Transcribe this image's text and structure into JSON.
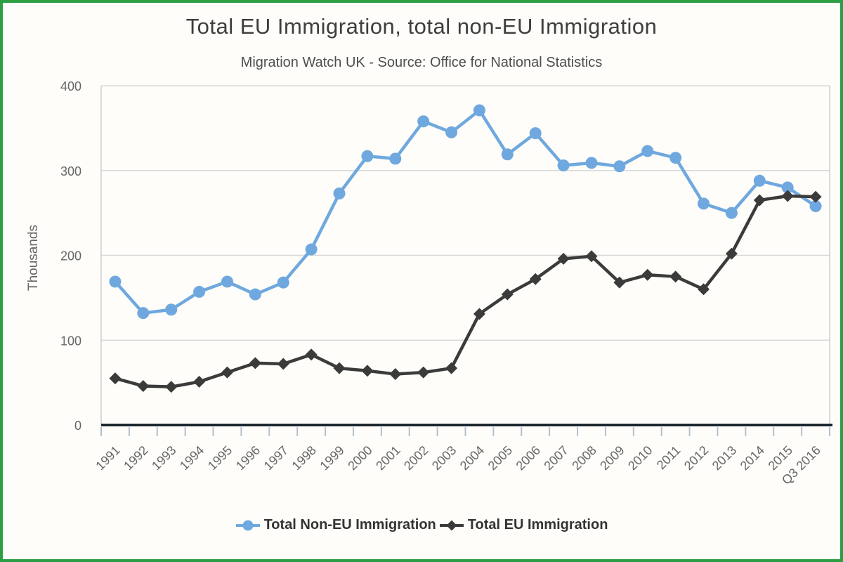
{
  "frame": {
    "border_color": "#2E9E44",
    "background": "#FEFDF9"
  },
  "chart_data": {
    "type": "line",
    "title": "Total EU Immigration, total non-EU Immigration",
    "subtitle": "Migration Watch UK - Source: Office for National Statistics",
    "ylabel": "Thousands",
    "xlabel": "",
    "ylim": [
      0,
      400
    ],
    "yticks": [
      0,
      100,
      200,
      300,
      400
    ],
    "grid": true,
    "legend_position": "bottom",
    "axis_color": "#101A24",
    "grid_color": "#D9D9D9",
    "tick_color": "#B3C2D1",
    "plot_border_color": "#CCCCCC",
    "label_color": "#666666",
    "categories": [
      "1991",
      "1992",
      "1993",
      "1994",
      "1995",
      "1996",
      "1997",
      "1998",
      "1999",
      "2000",
      "2001",
      "2002",
      "2003",
      "2004",
      "2005",
      "2006",
      "2007",
      "2008",
      "2009",
      "2010",
      "2011",
      "2012",
      "2013",
      "2014",
      "2015",
      "Q3 2016"
    ],
    "series": [
      {
        "name": "Total Non-EU Immigration",
        "marker": "circle",
        "color": "#6FA8DF",
        "values": [
          169,
          132,
          136,
          157,
          169,
          154,
          168,
          207,
          273,
          317,
          314,
          358,
          345,
          371,
          319,
          344,
          306,
          309,
          305,
          323,
          315,
          261,
          250,
          288,
          280,
          258
        ]
      },
      {
        "name": "Total EU Immigration",
        "marker": "diamond",
        "color": "#3B3B3B",
        "values": [
          55,
          46,
          45,
          51,
          62,
          73,
          72,
          83,
          67,
          64,
          60,
          62,
          67,
          131,
          154,
          172,
          196,
          199,
          168,
          177,
          175,
          160,
          202,
          265,
          270,
          269
        ]
      }
    ]
  }
}
